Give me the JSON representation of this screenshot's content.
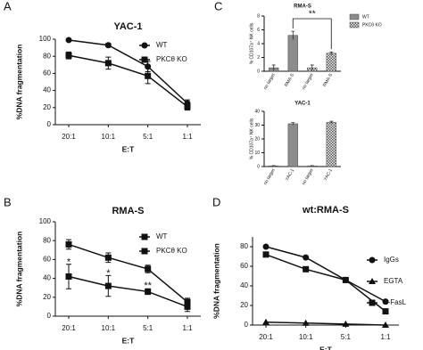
{
  "chart_data": [
    {
      "type": "line",
      "panel": "A",
      "title": "YAC-1",
      "x_label": "E:T",
      "y_label": "%DNA fragmentation",
      "categories": [
        "20:1",
        "10:1",
        "5:1",
        "1:1"
      ],
      "ylim": [
        0,
        100
      ],
      "yticks": [
        0,
        20,
        40,
        60,
        80,
        100
      ],
      "series": [
        {
          "name": "WT",
          "color": "#111111",
          "marker": "circle",
          "values": [
            99,
            93,
            68,
            25
          ],
          "errors": [
            1,
            2,
            6,
            4
          ]
        },
        {
          "name": "PKCθ KO",
          "color": "#111111",
          "marker": "square",
          "values": [
            81,
            72,
            57,
            21
          ],
          "errors": [
            4,
            7,
            9,
            4
          ]
        }
      ]
    },
    {
      "type": "line",
      "panel": "B",
      "title": "RMA-S",
      "x_label": "E:T",
      "y_label": "%DNA fragmentation",
      "categories": [
        "20:1",
        "10:1",
        "5:1",
        "1:1"
      ],
      "ylim": [
        0,
        100
      ],
      "yticks": [
        0,
        20,
        40,
        60,
        80,
        100
      ],
      "series": [
        {
          "name": "WT",
          "color": "#111111",
          "marker": "square",
          "values": [
            76,
            62,
            50,
            15
          ],
          "errors": [
            5,
            5,
            4,
            4
          ]
        },
        {
          "name": "PKCθ KO",
          "color": "#111111",
          "marker": "square",
          "values": [
            42,
            32,
            26,
            10
          ],
          "errors": [
            13,
            11,
            3,
            5
          ]
        }
      ],
      "annotations": [
        {
          "text": "*",
          "x": "20:1",
          "y": 57
        },
        {
          "text": "*",
          "x": "10:1",
          "y": 45
        },
        {
          "text": "**",
          "x": "5:1",
          "y": 32
        }
      ]
    },
    {
      "type": "bar",
      "panel": "C",
      "title": "RMA-S",
      "y_label": "% CD107a⁺ NK cells",
      "categories": [
        "no target",
        "RMA-S",
        "no target",
        "RMA-S"
      ],
      "ylim": [
        0,
        8
      ],
      "yticks": [
        0,
        2,
        4,
        6,
        8
      ],
      "series": [
        {
          "name": "WT",
          "color": "#8c8c8c",
          "values": [
            0.5,
            5.2,
            null,
            null
          ],
          "errors": [
            0.4,
            0.6,
            null,
            null
          ]
        },
        {
          "name": "PKCθ KO",
          "color": "#d0d0d0",
          "pattern": "checker",
          "values": [
            null,
            null,
            0.5,
            2.6
          ],
          "errors": [
            null,
            null,
            0.4,
            0.2
          ]
        }
      ],
      "annotation": "**"
    },
    {
      "type": "bar",
      "title": "YAC-1",
      "y_label": "% CD107a⁺ NK cells",
      "categories": [
        "no target",
        "YAC-1",
        "no target",
        "YAC-1"
      ],
      "ylim": [
        0,
        40
      ],
      "yticks": [
        0,
        10,
        20,
        30,
        40
      ],
      "series": [
        {
          "color": "#8c8c8c",
          "values": [
            0.5,
            31,
            null,
            null
          ],
          "errors": [
            0.2,
            0.8,
            null,
            null
          ]
        },
        {
          "color": "#d0d0d0",
          "pattern": "checker",
          "values": [
            null,
            null,
            0.5,
            32
          ],
          "errors": [
            null,
            null,
            0.2,
            0.8
          ]
        }
      ]
    },
    {
      "type": "line",
      "panel": "D",
      "title": "wt:RMA-S",
      "x_label": "E:T",
      "y_label": "%DNA fragmentation",
      "categories": [
        "20:1",
        "10:1",
        "5:1",
        "1:1"
      ],
      "ylim": [
        0,
        90
      ],
      "yticks": [
        0,
        20,
        40,
        60,
        80
      ],
      "series": [
        {
          "name": "IgGs",
          "color": "#111111",
          "marker": "circle",
          "values": [
            80,
            69,
            46,
            24
          ]
        },
        {
          "name": "EGTA",
          "color": "#111111",
          "marker": "triangle",
          "values": [
            3,
            2,
            1,
            0
          ]
        },
        {
          "name": "α-FasL",
          "color": "#111111",
          "marker": "square",
          "values": [
            72,
            57,
            46,
            14
          ]
        }
      ]
    }
  ]
}
